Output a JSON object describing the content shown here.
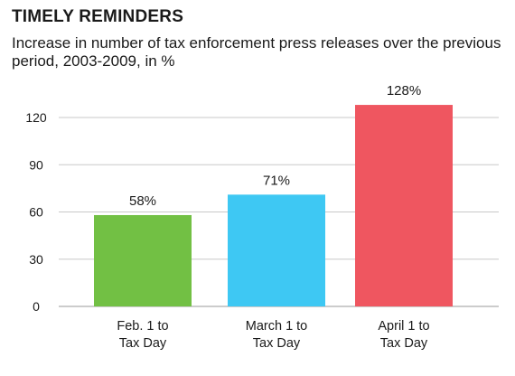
{
  "chart_data": {
    "type": "bar",
    "title": "TIMELY REMINDERS",
    "subtitle": "Increase in number of tax enforcement press releases over the previous period, 2003-2009, in %",
    "categories": [
      [
        "Feb. 1 to",
        "Tax Day"
      ],
      [
        "March 1 to",
        "Tax Day"
      ],
      [
        "April 1 to",
        "Tax Day"
      ]
    ],
    "values": [
      58,
      71,
      128
    ],
    "data_labels": [
      "58%",
      "71%",
      "128%"
    ],
    "colors": [
      "#72c044",
      "#3ec8f3",
      "#ef5660"
    ],
    "yticks": [
      0,
      30,
      60,
      90,
      120
    ],
    "ylim": [
      0,
      135
    ],
    "grid": true,
    "xlabel": "",
    "ylabel": ""
  }
}
